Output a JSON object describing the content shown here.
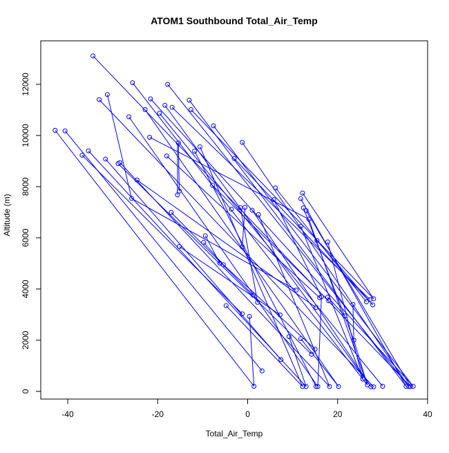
{
  "chart_data": {
    "type": "scatter",
    "title": "ATOM1 Southbound Total_Air_Temp",
    "xlabel": "Total_Air_Temp",
    "ylabel": "Altitude (m)",
    "xlim": [
      -46,
      40
    ],
    "ylim": [
      -300,
      13700
    ],
    "xticks": [
      -40,
      -20,
      0,
      20,
      40
    ],
    "yticks": [
      0,
      2000,
      4000,
      6000,
      8000,
      10000,
      12000
    ],
    "grid": false,
    "marker": "open-circle",
    "line_color": "#0000ff",
    "point_color": "#0000ff",
    "points": [
      {
        "x": -34.4,
        "y": 13110
      },
      {
        "x": -25.6,
        "y": 12060
      },
      {
        "x": -17.8,
        "y": 12000
      },
      {
        "x": -31.2,
        "y": 11600
      },
      {
        "x": -33.0,
        "y": 11400
      },
      {
        "x": -21.6,
        "y": 11430
      },
      {
        "x": -13.0,
        "y": 11380
      },
      {
        "x": -18.4,
        "y": 11180
      },
      {
        "x": -16.8,
        "y": 11100
      },
      {
        "x": -22.8,
        "y": 11010
      },
      {
        "x": -12.6,
        "y": 11010
      },
      {
        "x": -19.6,
        "y": 10870
      },
      {
        "x": -26.4,
        "y": 10730
      },
      {
        "x": -7.6,
        "y": 10380
      },
      {
        "x": -42.8,
        "y": 10200
      },
      {
        "x": -40.6,
        "y": 10180
      },
      {
        "x": -21.8,
        "y": 9930
      },
      {
        "x": -1.2,
        "y": 9730
      },
      {
        "x": -15.4,
        "y": 9710
      },
      {
        "x": -10.6,
        "y": 9560
      },
      {
        "x": -35.4,
        "y": 9400
      },
      {
        "x": -11.8,
        "y": 9390
      },
      {
        "x": -36.8,
        "y": 9230
      },
      {
        "x": -18.0,
        "y": 9200
      },
      {
        "x": -3.0,
        "y": 9100
      },
      {
        "x": -31.6,
        "y": 9080
      },
      {
        "x": -28.4,
        "y": 8940
      },
      {
        "x": -28.8,
        "y": 8900
      },
      {
        "x": -24.6,
        "y": 8260
      },
      {
        "x": -7.8,
        "y": 8050
      },
      {
        "x": 6.2,
        "y": 7950
      },
      {
        "x": -15.2,
        "y": 7830
      },
      {
        "x": 12.2,
        "y": 7750
      },
      {
        "x": -15.6,
        "y": 7680
      },
      {
        "x": -25.8,
        "y": 7540
      },
      {
        "x": 11.8,
        "y": 7530
      },
      {
        "x": 5.8,
        "y": 7490
      },
      {
        "x": -1.6,
        "y": 7180
      },
      {
        "x": -0.6,
        "y": 7190
      },
      {
        "x": 12.4,
        "y": 7170
      },
      {
        "x": -3.6,
        "y": 7120
      },
      {
        "x": 1.0,
        "y": 7080
      },
      {
        "x": 13.0,
        "y": 7060
      },
      {
        "x": -17.0,
        "y": 6990
      },
      {
        "x": 2.4,
        "y": 6910
      },
      {
        "x": 13.6,
        "y": 6730
      },
      {
        "x": 11.8,
        "y": 6450
      },
      {
        "x": -9.4,
        "y": 6080
      },
      {
        "x": 15.4,
        "y": 5900
      },
      {
        "x": -9.8,
        "y": 5820
      },
      {
        "x": 17.8,
        "y": 5840
      },
      {
        "x": -15.2,
        "y": 5660
      },
      {
        "x": -1.2,
        "y": 5650
      },
      {
        "x": -6.2,
        "y": 5010
      },
      {
        "x": -5.4,
        "y": 4950
      },
      {
        "x": 10.8,
        "y": 3960
      },
      {
        "x": 1.2,
        "y": 3760
      },
      {
        "x": 16.4,
        "y": 3700
      },
      {
        "x": 16.0,
        "y": 3660
      },
      {
        "x": 17.8,
        "y": 3680
      },
      {
        "x": 27.2,
        "y": 3590
      },
      {
        "x": 28.0,
        "y": 3620
      },
      {
        "x": 26.4,
        "y": 3500
      },
      {
        "x": 2.2,
        "y": 3480
      },
      {
        "x": 18.0,
        "y": 3540
      },
      {
        "x": 23.4,
        "y": 3400
      },
      {
        "x": 27.8,
        "y": 3380
      },
      {
        "x": -4.8,
        "y": 3350
      },
      {
        "x": 15.2,
        "y": 3280
      },
      {
        "x": -1.2,
        "y": 3030
      },
      {
        "x": 7.2,
        "y": 2990
      },
      {
        "x": 0.4,
        "y": 2930
      },
      {
        "x": 21.6,
        "y": 2950
      },
      {
        "x": 9.2,
        "y": 2140
      },
      {
        "x": 11.8,
        "y": 2060
      },
      {
        "x": 23.6,
        "y": 2000
      },
      {
        "x": 15.0,
        "y": 1650
      },
      {
        "x": 14.2,
        "y": 1450
      },
      {
        "x": 7.4,
        "y": 1240
      },
      {
        "x": 3.2,
        "y": 800
      },
      {
        "x": 25.6,
        "y": 480
      },
      {
        "x": 26.6,
        "y": 250
      },
      {
        "x": 1.4,
        "y": 200
      },
      {
        "x": 12.2,
        "y": 190
      },
      {
        "x": 13.0,
        "y": 190
      },
      {
        "x": 15.2,
        "y": 190
      },
      {
        "x": 15.6,
        "y": 190
      },
      {
        "x": 18.2,
        "y": 190
      },
      {
        "x": 20.2,
        "y": 190
      },
      {
        "x": 27.4,
        "y": 180
      },
      {
        "x": 28.0,
        "y": 180
      },
      {
        "x": 30.0,
        "y": 200
      },
      {
        "x": 35.2,
        "y": 200
      },
      {
        "x": 35.8,
        "y": 190
      },
      {
        "x": 36.2,
        "y": 190
      },
      {
        "x": 36.8,
        "y": 200
      }
    ],
    "segments": [
      [
        [
          -34.4,
          13110
        ],
        [
          36.2,
          190
        ]
      ],
      [
        [
          -25.6,
          12060
        ],
        [
          26.6,
          250
        ]
      ],
      [
        [
          -17.8,
          12000
        ],
        [
          35.8,
          190
        ]
      ],
      [
        [
          -31.2,
          11600
        ],
        [
          -25.8,
          7540
        ]
      ],
      [
        [
          -33.0,
          11400
        ],
        [
          28.0,
          180
        ]
      ],
      [
        [
          -21.6,
          11430
        ],
        [
          36.8,
          200
        ]
      ],
      [
        [
          -13.0,
          11380
        ],
        [
          35.2,
          200
        ]
      ],
      [
        [
          -18.4,
          11180
        ],
        [
          27.4,
          180
        ]
      ],
      [
        [
          -16.8,
          11100
        ],
        [
          27.2,
          3590
        ]
      ],
      [
        [
          -22.8,
          11010
        ],
        [
          20.2,
          190
        ]
      ],
      [
        [
          -12.6,
          11010
        ],
        [
          28.0,
          3620
        ]
      ],
      [
        [
          -19.6,
          10870
        ],
        [
          30.0,
          200
        ]
      ],
      [
        [
          -26.4,
          10730
        ],
        [
          15.6,
          190
        ]
      ],
      [
        [
          -7.6,
          10380
        ],
        [
          36.8,
          200
        ]
      ],
      [
        [
          -42.8,
          10200
        ],
        [
          1.4,
          200
        ]
      ],
      [
        [
          -40.6,
          10180
        ],
        [
          3.2,
          800
        ]
      ],
      [
        [
          -21.8,
          9930
        ],
        [
          13.6,
          6730
        ]
      ],
      [
        [
          -1.2,
          9730
        ],
        [
          35.8,
          190
        ]
      ],
      [
        [
          -15.4,
          9710
        ],
        [
          -15.2,
          7830
        ]
      ],
      [
        [
          -10.6,
          9560
        ],
        [
          12.2,
          190
        ]
      ],
      [
        [
          -35.4,
          9400
        ],
        [
          13.0,
          190
        ]
      ],
      [
        [
          -11.8,
          9390
        ],
        [
          15.2,
          190
        ]
      ],
      [
        [
          -36.8,
          9230
        ],
        [
          -1.2,
          3030
        ]
      ],
      [
        [
          -18.0,
          9200
        ],
        [
          16.0,
          3660
        ]
      ],
      [
        [
          -3.0,
          9100
        ],
        [
          27.8,
          3380
        ]
      ],
      [
        [
          -31.6,
          9080
        ],
        [
          7.4,
          1240
        ]
      ],
      [
        [
          -28.4,
          8940
        ],
        [
          18.2,
          190
        ]
      ],
      [
        [
          -28.8,
          8900
        ],
        [
          14.2,
          1450
        ]
      ],
      [
        [
          -24.6,
          8260
        ],
        [
          15.2,
          3280
        ]
      ],
      [
        [
          -7.8,
          8050
        ],
        [
          18.0,
          3540
        ]
      ],
      [
        [
          6.2,
          7950
        ],
        [
          26.4,
          3500
        ]
      ],
      [
        [
          12.2,
          7750
        ],
        [
          28.0,
          3620
        ]
      ],
      [
        [
          -15.6,
          7680
        ],
        [
          -15.6,
          9700
        ]
      ],
      [
        [
          -25.8,
          7540
        ],
        [
          10.8,
          3960
        ]
      ],
      [
        [
          11.8,
          7530
        ],
        [
          35.2,
          200
        ]
      ],
      [
        [
          5.8,
          7490
        ],
        [
          16.4,
          3700
        ]
      ],
      [
        [
          -1.6,
          7180
        ],
        [
          2.2,
          3480
        ]
      ],
      [
        [
          -0.6,
          7190
        ],
        [
          -1.2,
          5650
        ]
      ],
      [
        [
          12.4,
          7170
        ],
        [
          23.6,
          2000
        ]
      ],
      [
        [
          1.0,
          7080
        ],
        [
          27.4,
          180
        ]
      ],
      [
        [
          13.0,
          7060
        ],
        [
          36.2,
          190
        ]
      ],
      [
        [
          -17.0,
          6990
        ],
        [
          1.2,
          3760
        ]
      ],
      [
        [
          2.4,
          6910
        ],
        [
          18.2,
          190
        ]
      ],
      [
        [
          13.6,
          6730
        ],
        [
          26.6,
          250
        ]
      ],
      [
        [
          11.8,
          6450
        ],
        [
          25.6,
          480
        ]
      ],
      [
        [
          -9.4,
          6080
        ],
        [
          -6.2,
          5010
        ]
      ],
      [
        [
          15.4,
          5900
        ],
        [
          27.8,
          3380
        ]
      ],
      [
        [
          -9.8,
          5820
        ],
        [
          -5.4,
          4950
        ]
      ],
      [
        [
          17.8,
          5840
        ],
        [
          25.6,
          480
        ]
      ],
      [
        [
          -15.2,
          5660
        ],
        [
          7.2,
          2990
        ]
      ],
      [
        [
          -5.4,
          4950
        ],
        [
          15.0,
          1650
        ]
      ],
      [
        [
          16.4,
          3700
        ],
        [
          15.6,
          190
        ]
      ],
      [
        [
          17.8,
          3680
        ],
        [
          21.6,
          2950
        ]
      ],
      [
        [
          23.4,
          3400
        ],
        [
          23.6,
          2000
        ]
      ],
      [
        [
          -4.8,
          3350
        ],
        [
          12.2,
          190
        ]
      ],
      [
        [
          0.4,
          2930
        ],
        [
          1.4,
          200
        ]
      ],
      [
        [
          9.2,
          2140
        ],
        [
          13.0,
          190
        ]
      ],
      [
        [
          11.8,
          2060
        ],
        [
          20.2,
          190
        ]
      ],
      [
        [
          23.6,
          2000
        ],
        [
          26.6,
          250
        ]
      ]
    ]
  }
}
